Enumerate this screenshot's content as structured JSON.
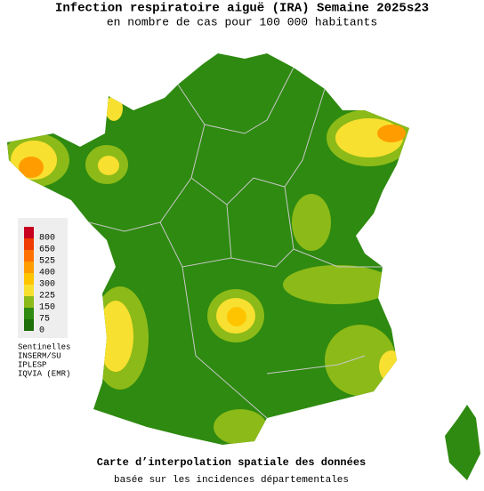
{
  "header": {
    "title": "Infection respiratoire aiguë (IRA) Semaine 2025s23",
    "subtitle": "en nombre de cas pour 100 000 habitants"
  },
  "legend": {
    "levels": [
      {
        "value": 800,
        "color": "#c80020"
      },
      {
        "value": 650,
        "color": "#f03c00"
      },
      {
        "value": 525,
        "color": "#ff7000"
      },
      {
        "value": 400,
        "color": "#ff9c00"
      },
      {
        "value": 300,
        "color": "#ffc400"
      },
      {
        "value": 225,
        "color": "#f8e030"
      },
      {
        "value": 150,
        "color": "#8cba18"
      },
      {
        "value": 75,
        "color": "#2e8a10"
      },
      {
        "value": 0,
        "color": "#1e6e0a"
      }
    ],
    "sources": [
      "Sentinelles",
      "INSERM/SU",
      "IPLESP",
      "IQVIA (EMR)"
    ]
  },
  "footer": {
    "caption": "Carte d’interpolation spatiale des données",
    "note": "basée sur les incidences départementales"
  }
}
